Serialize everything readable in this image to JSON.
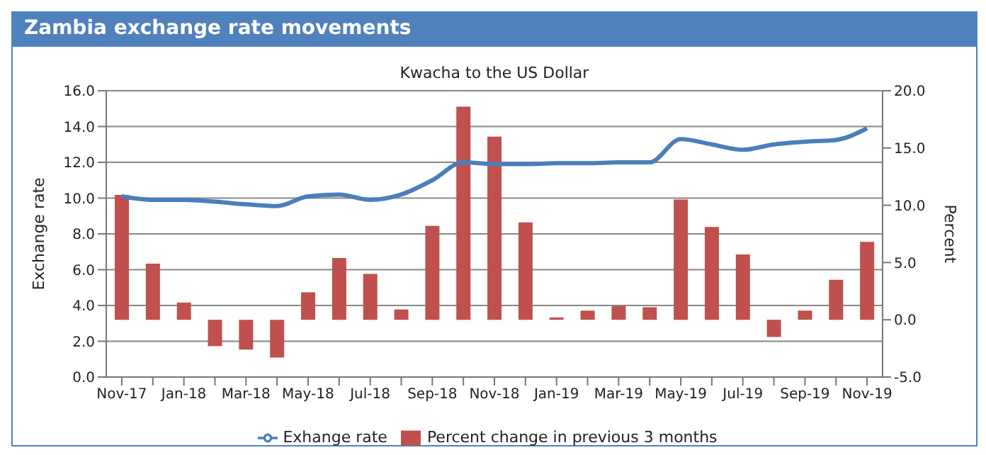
{
  "chart_data": {
    "type": "bar",
    "title": "Zambia exchange rate movements",
    "subtitle": "Kwacha to the US Dollar",
    "ylabel": "Exchange rate",
    "y2label": "Percent",
    "categories": [
      "Nov-17",
      null,
      "Jan-18",
      null,
      "Mar-18",
      null,
      "May-18",
      null,
      "Jul-18",
      null,
      "Sep-18",
      null,
      "Nov-18",
      null,
      "Jan-19",
      null,
      "Mar-19",
      null,
      "May-19",
      null,
      "Jul-19",
      null,
      "Sep-19",
      null,
      "Nov-19"
    ],
    "series": [
      {
        "name": "Exhange rate",
        "type": "line",
        "color": "#4a7ebb",
        "values": [
          10.1,
          9.9,
          9.9,
          9.8,
          9.65,
          9.55,
          10.1,
          10.2,
          9.9,
          10.2,
          11.0,
          12.0,
          11.9,
          11.9,
          11.95,
          11.95,
          12.0,
          12.0,
          13.3,
          13.0,
          12.7,
          13.0,
          13.15,
          13.25,
          13.9
        ]
      },
      {
        "name": "Percent change in previous 3 months",
        "axis": "y2",
        "color": "#c0504d",
        "values": [
          10.9,
          4.9,
          1.5,
          -2.3,
          -2.6,
          -3.3,
          2.4,
          5.4,
          4.0,
          0.9,
          8.2,
          18.6,
          16.0,
          8.5,
          0.2,
          0.8,
          1.2,
          1.1,
          10.5,
          8.1,
          5.7,
          -1.5,
          0.8,
          3.5,
          6.8
        ]
      }
    ],
    "ylim": [
      0,
      16
    ],
    "yticks": [
      {
        "value": 0,
        "label": "0.0"
      },
      {
        "value": 2,
        "label": "2.0"
      },
      {
        "value": 4,
        "label": "4.0"
      },
      {
        "value": 6,
        "label": "6.0"
      },
      {
        "value": 8,
        "label": "8.0"
      },
      {
        "value": 10,
        "label": "10.0"
      },
      {
        "value": 12,
        "label": "12.0"
      },
      {
        "value": 14,
        "label": "14.0"
      },
      {
        "value": 16,
        "label": "16.0"
      }
    ],
    "y2lim": [
      -5,
      20
    ],
    "y2ticks": [
      {
        "value": -5,
        "label": "-5.0"
      },
      {
        "value": 0,
        "label": "0.0"
      },
      {
        "value": 5,
        "label": "5.0"
      },
      {
        "value": 10,
        "label": "10.0"
      },
      {
        "value": 15,
        "label": "15.0"
      },
      {
        "value": 20,
        "label": "20.0"
      }
    ],
    "grid": "y",
    "legend": "bottom",
    "marker": "none"
  }
}
